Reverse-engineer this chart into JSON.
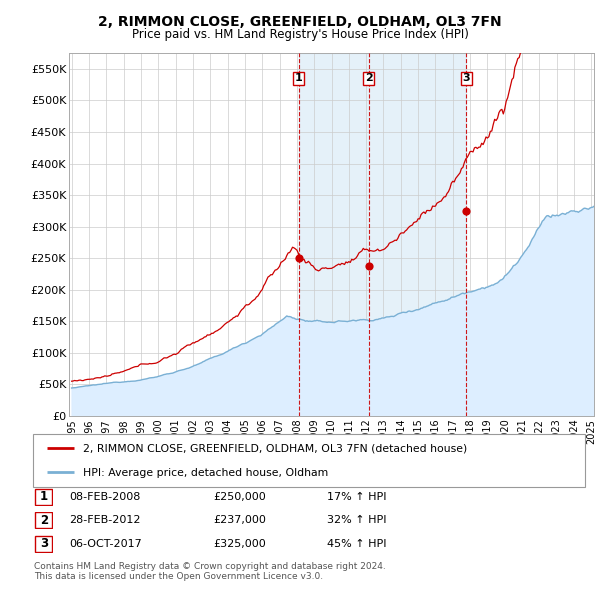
{
  "title": "2, RIMMON CLOSE, GREENFIELD, OLDHAM, OL3 7FN",
  "subtitle": "Price paid vs. HM Land Registry's House Price Index (HPI)",
  "ylim": [
    0,
    575000
  ],
  "yticks": [
    0,
    50000,
    100000,
    150000,
    200000,
    250000,
    300000,
    350000,
    400000,
    450000,
    500000,
    550000
  ],
  "ytick_labels": [
    "£0",
    "£50K",
    "£100K",
    "£150K",
    "£200K",
    "£250K",
    "£300K",
    "£350K",
    "£400K",
    "£450K",
    "£500K",
    "£550K"
  ],
  "line_color_property": "#cc0000",
  "line_color_hpi": "#7ab0d4",
  "fill_color_hpi": "#ddeeff",
  "marker_color": "#cc0000",
  "vline_color": "#cc0000",
  "background_color": "#ffffff",
  "grid_color": "#cccccc",
  "legend_label_property": "2, RIMMON CLOSE, GREENFIELD, OLDHAM, OL3 7FN (detached house)",
  "legend_label_hpi": "HPI: Average price, detached house, Oldham",
  "transactions": [
    {
      "num": 1,
      "date": "08-FEB-2008",
      "price": 250000,
      "pct": "17%",
      "direction": "↑",
      "year": 2008.1
    },
    {
      "num": 2,
      "date": "28-FEB-2012",
      "price": 237000,
      "pct": "32%",
      "direction": "↑",
      "year": 2012.15
    },
    {
      "num": 3,
      "date": "06-OCT-2017",
      "price": 325000,
      "pct": "45%",
      "direction": "↑",
      "year": 2017.77
    }
  ],
  "footnote1": "Contains HM Land Registry data © Crown copyright and database right 2024.",
  "footnote2": "This data is licensed under the Open Government Licence v3.0.",
  "x_start_year": 1995,
  "x_end_year": 2025
}
